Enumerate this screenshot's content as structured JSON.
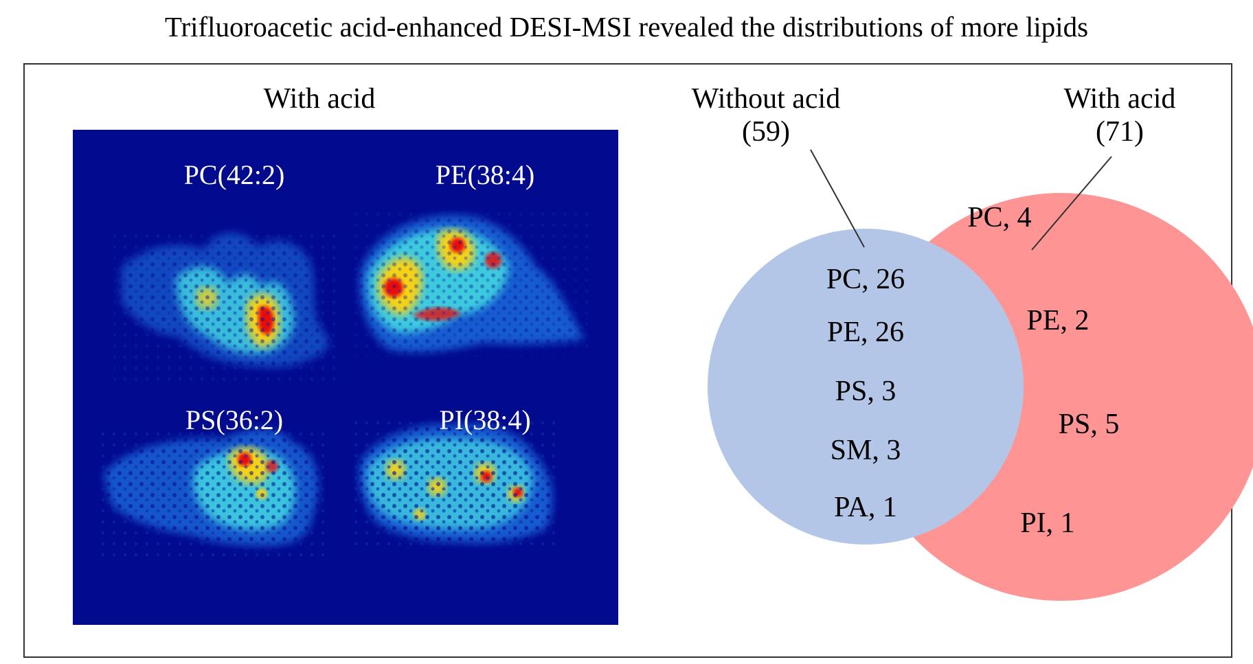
{
  "title": "Trifluoroacetic acid-enhanced DESI-MSI revealed the distributions of more lipids",
  "left_panel": {
    "label": "With acid",
    "tiles": [
      {
        "label": "PC(42:2)"
      },
      {
        "label": "PE(38:4)"
      },
      {
        "label": "PS(36:2)"
      },
      {
        "label": "PI(38:4)"
      }
    ]
  },
  "venn": {
    "without": {
      "label": "Without acid",
      "count": "(59)",
      "color": "#b4c6e7",
      "items": [
        "PC, 26",
        "PE, 26",
        "PS, 3",
        "SM, 3",
        "PA, 1"
      ]
    },
    "with": {
      "label": "With acid",
      "count": "(71)",
      "color": "#fe9494",
      "items": [
        "PC, 4",
        "PE, 2",
        "PS, 5",
        "PI, 1"
      ]
    }
  },
  "colors": {
    "background_msi": "#020a8e",
    "hot": "#e8100a",
    "warm": "#f5d214",
    "mid": "#3fd0e0",
    "low": "#1a6fe0"
  }
}
